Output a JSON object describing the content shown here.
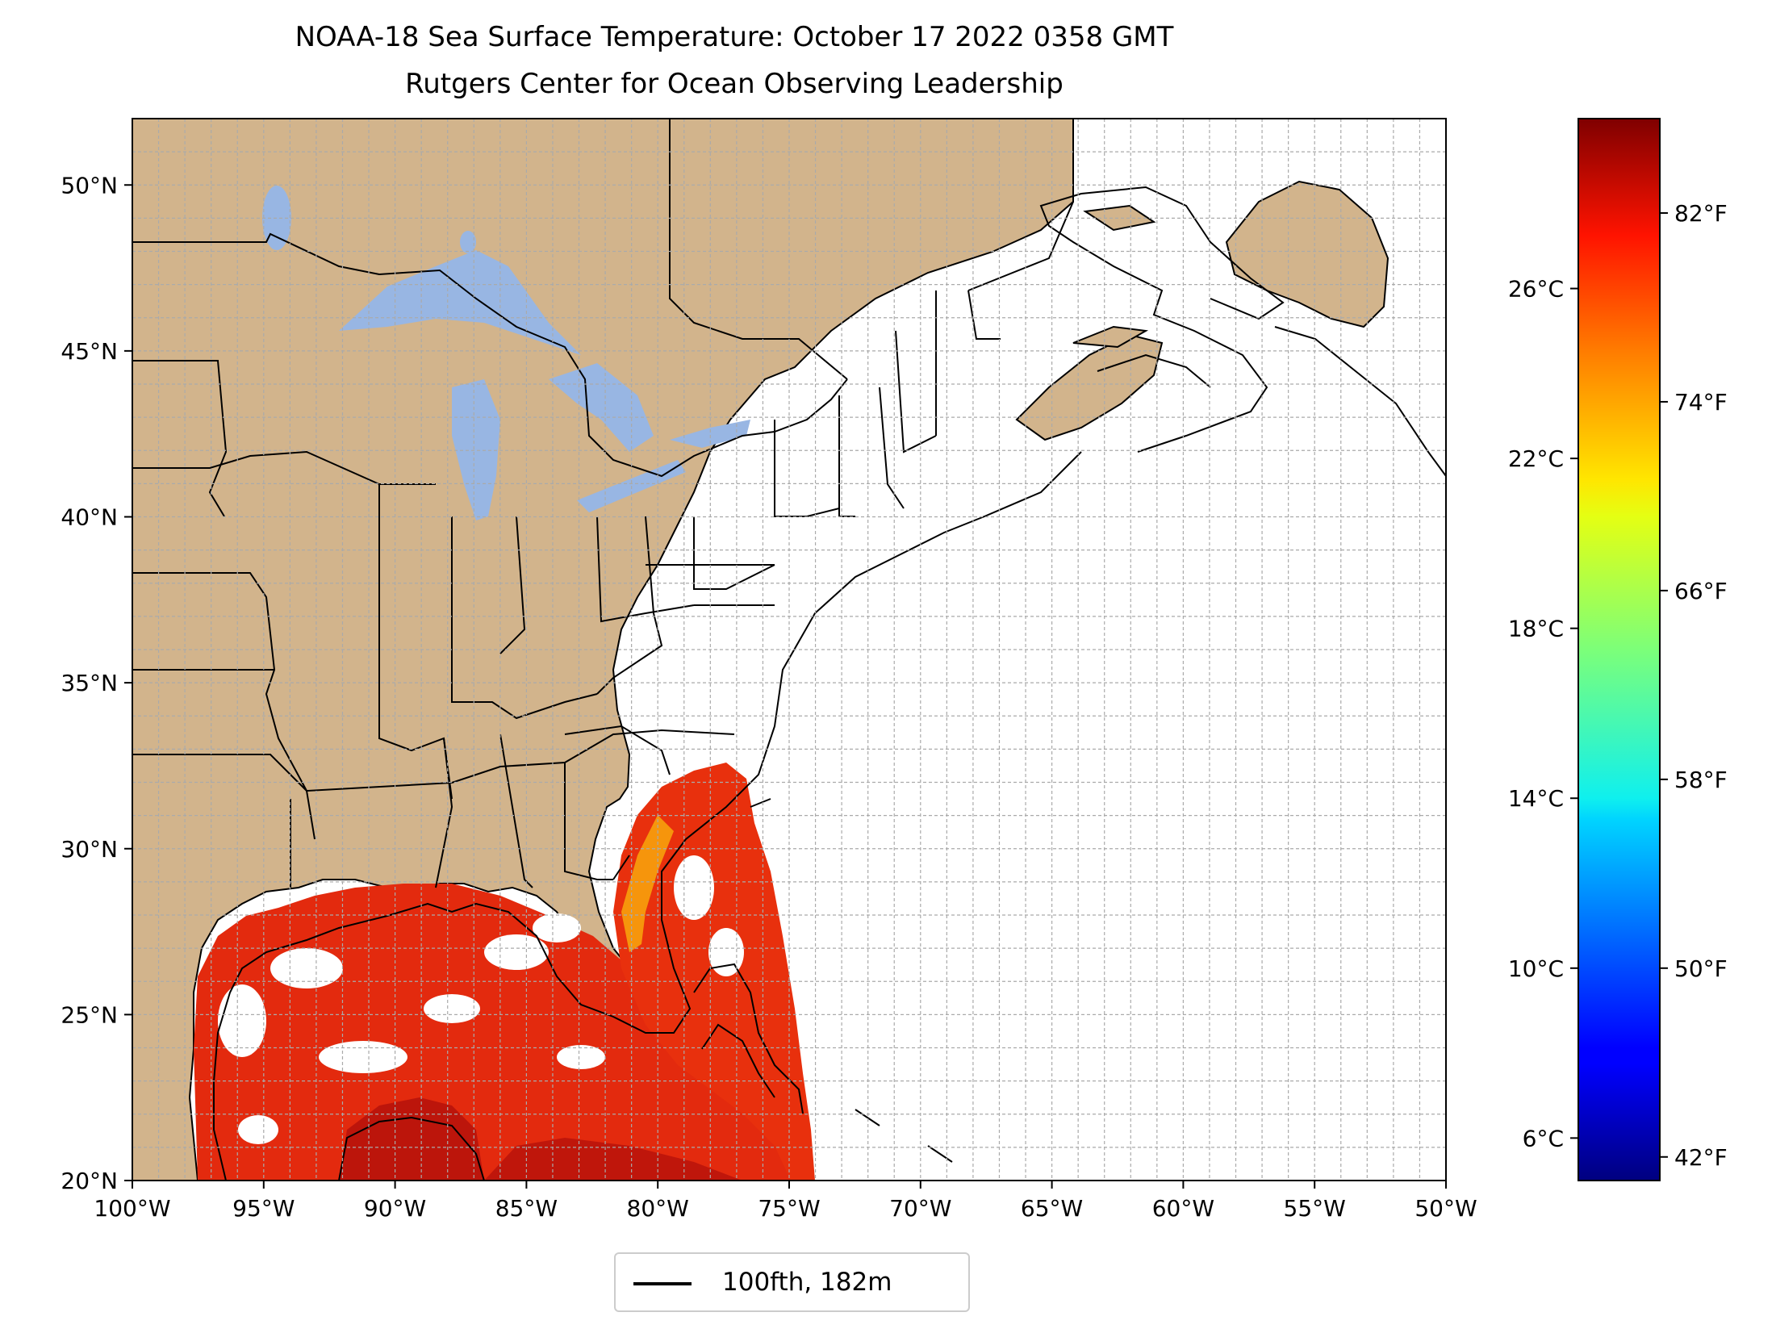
{
  "title": {
    "line1": "NOAA-18 Sea Surface Temperature: October 17 2022 0358 GMT",
    "line2": "Rutgers Center for Ocean Observing Leadership"
  },
  "map": {
    "lon_range": [
      -100,
      -50
    ],
    "lat_range": [
      20,
      52
    ],
    "gridlines": "dashed, 1 degree",
    "colors": {
      "land": "#d2b48c",
      "lakes": "#98b6e3",
      "ocean": "#ffffff",
      "border": "#000000"
    },
    "lat_labels": [
      "20°N",
      "25°N",
      "30°N",
      "35°N",
      "40°N",
      "45°N",
      "50°N"
    ],
    "lon_labels": [
      "100°W",
      "95°W",
      "90°W",
      "85°W",
      "80°W",
      "75°W",
      "70°W",
      "65°W",
      "60°W",
      "55°W",
      "50°W"
    ]
  },
  "colorbar": {
    "colormap": "jet",
    "range_c": [
      5,
      30
    ],
    "celsius_labels": [
      "6°C",
      "10°C",
      "14°C",
      "18°C",
      "22°C",
      "26°C"
    ],
    "celsius_values": [
      6,
      10,
      14,
      18,
      22,
      26
    ],
    "fahrenheit_labels": [
      "42°F",
      "50°F",
      "58°F",
      "66°F",
      "74°F",
      "82°F"
    ],
    "fahrenheit_values": [
      42,
      50,
      58,
      66,
      74,
      82
    ]
  },
  "legend": {
    "label": "100fth, 182m",
    "line_color": "#000000"
  }
}
